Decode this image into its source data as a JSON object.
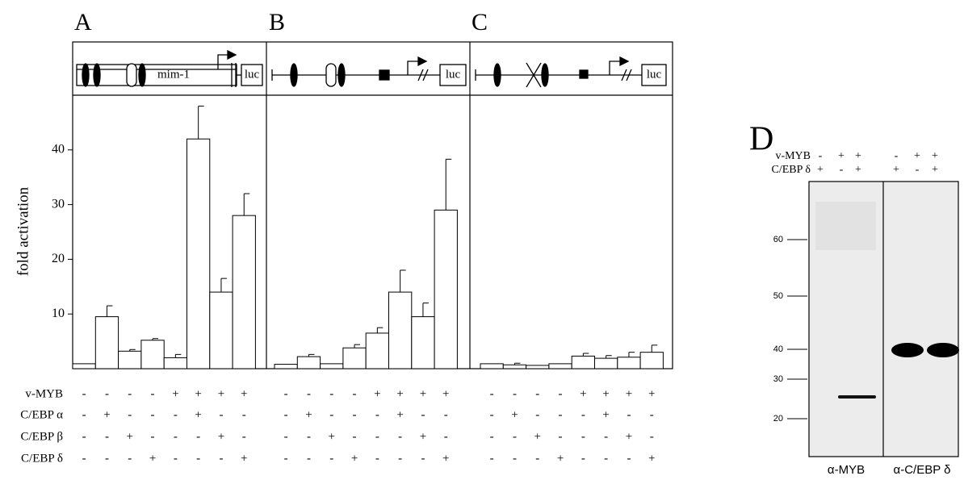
{
  "chart_data": [
    {
      "type": "bar",
      "panel": "A",
      "ylabel": "fold activation",
      "diagram_labels": [
        "mim-1",
        "luc"
      ],
      "values": [
        0.9,
        9.5,
        3.2,
        5.2,
        2,
        42,
        14,
        28
      ],
      "errors": [
        null,
        2,
        0.3,
        0.3,
        0.6,
        6,
        2.5,
        4
      ],
      "color": "#ffffff",
      "ylim": [
        0,
        50
      ],
      "yticks": [
        10,
        20,
        30,
        40
      ]
    },
    {
      "type": "bar",
      "panel": "B",
      "diagram_labels": [
        "luc"
      ],
      "values": [
        0.8,
        2.2,
        0.9,
        3.8,
        6.5,
        14,
        9.5,
        29
      ],
      "errors": [
        null,
        0.4,
        null,
        0.6,
        1,
        4,
        2.5,
        9.3
      ],
      "color": "#ffffff",
      "ylim": [
        0,
        50
      ]
    },
    {
      "type": "bar",
      "panel": "C",
      "diagram_labels": [
        "luc"
      ],
      "values": [
        0.9,
        0.7,
        0.6,
        0.9,
        2.3,
        1.9,
        2.1,
        3
      ],
      "errors": [
        null,
        0.3,
        null,
        null,
        0.5,
        0.5,
        0.9,
        1.3
      ],
      "color": "#ffffff",
      "ylim": [
        0,
        50
      ]
    }
  ],
  "conditions": {
    "labels": [
      "v-MYB",
      "C/EBP α",
      "C/EBP β",
      "C/EBP δ"
    ],
    "signs": [
      [
        "-",
        "-",
        "-",
        "-",
        "+",
        "+",
        "+",
        "+"
      ],
      [
        "-",
        "+",
        "-",
        "-",
        "-",
        "+",
        "-",
        "-"
      ],
      [
        "-",
        "-",
        "+",
        "-",
        "-",
        "-",
        "+",
        "-"
      ],
      [
        "-",
        "-",
        "-",
        "+",
        "-",
        "-",
        "-",
        "+"
      ]
    ]
  },
  "blot": {
    "panel": "D",
    "rows": [
      {
        "label": "v-MYB",
        "signs": [
          "-",
          "+",
          "+",
          "-",
          "+",
          "+"
        ]
      },
      {
        "label": "C/EBP δ",
        "signs": [
          "+",
          "-",
          "+",
          "+",
          "-",
          "+"
        ]
      }
    ],
    "markers": [
      60,
      50,
      40,
      30,
      20
    ],
    "antibodies": [
      "α-MYB",
      "α-C/EBP δ"
    ]
  }
}
